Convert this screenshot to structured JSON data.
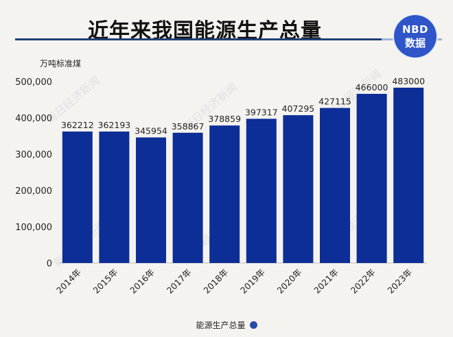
{
  "title": "近年来我国能源生产总量",
  "logo": {
    "line1": "NBD",
    "line2": "数据"
  },
  "watermark": "每日经济新闻",
  "colors": {
    "bar": "#0d2e96",
    "title_rule": "#1f3f7a",
    "logo": "#2f55c9",
    "background": "#f5f3ef"
  },
  "chart_data": {
    "type": "bar",
    "title": "近年来我国能源生产总量",
    "ylabel": "万吨标准煤",
    "xlabel": "",
    "categories": [
      "2014年",
      "2015年",
      "2016年",
      "2017年",
      "2018年",
      "2019年",
      "2020年",
      "2021年",
      "2022年",
      "2023年"
    ],
    "series": [
      {
        "name": "能源生产总量",
        "values": [
          362212,
          362193,
          345954,
          358867,
          378859,
          397317,
          407295,
          427115,
          466000,
          483000
        ]
      }
    ],
    "data_labels": [
      "362212",
      "362193",
      "345954",
      "358867",
      "378859",
      "397317",
      "407295",
      "427115",
      "466000",
      "483000"
    ],
    "ylim": [
      0,
      500000
    ],
    "yticks": [
      "0",
      "100,000",
      "200,000",
      "300,000",
      "400,000",
      "500,000"
    ],
    "grid": true,
    "legend_position": "bottom"
  }
}
